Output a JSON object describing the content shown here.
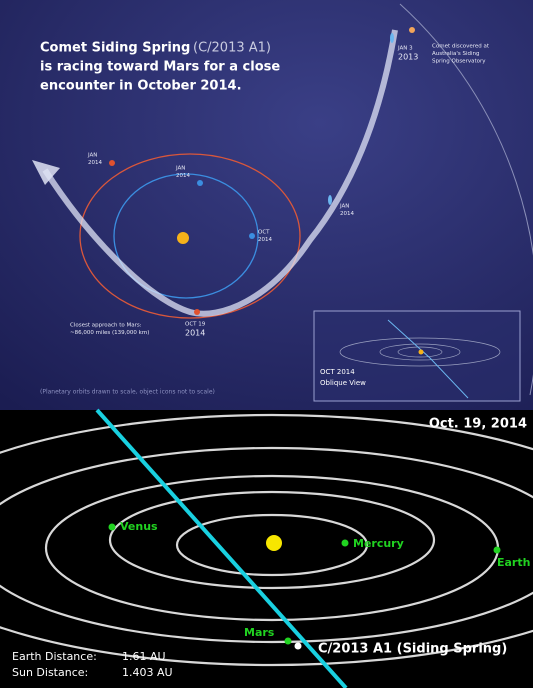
{
  "infographic": {
    "title": {
      "line1": "Comet Siding Spring",
      "designation": "(C/2013 A1)",
      "line2": "is racing toward Mars for a close",
      "line3": "encounter in October 2014."
    },
    "labels": [
      {
        "lines": [
          "JAN 3",
          "2013"
        ]
      },
      {
        "lines": [
          "Comet discovered at",
          "Australia's Siding",
          "Spring Observatory"
        ]
      },
      {
        "lines": [
          "JAN",
          "2014"
        ]
      },
      {
        "lines": [
          "JAN",
          "2014"
        ]
      },
      {
        "lines": [
          "OCT",
          "2014"
        ]
      },
      {
        "lines": [
          "JAN",
          "2014"
        ]
      },
      {
        "lines": [
          "Closest approach to Mars:",
          "~86,000 miles (139,000 km)"
        ]
      },
      {
        "lines": [
          "OCT 19",
          "2014"
        ]
      }
    ],
    "inset": {
      "lines": [
        "OCT 2014",
        "Oblique View"
      ]
    },
    "footnote": "(Planetary orbits drawn to scale, object icons not to scale)"
  },
  "orbit_view": {
    "date": "Oct. 19, 2014",
    "planets": [
      "Venus",
      "Mercury",
      "Earth",
      "Mars"
    ],
    "comet": "C/2013 A1 (Siding Spring)",
    "distances": [
      {
        "label": "Earth Distance:",
        "value": "1.61 AU"
      },
      {
        "label": "Sun Distance:",
        "value": "1.403 AU"
      }
    ]
  }
}
